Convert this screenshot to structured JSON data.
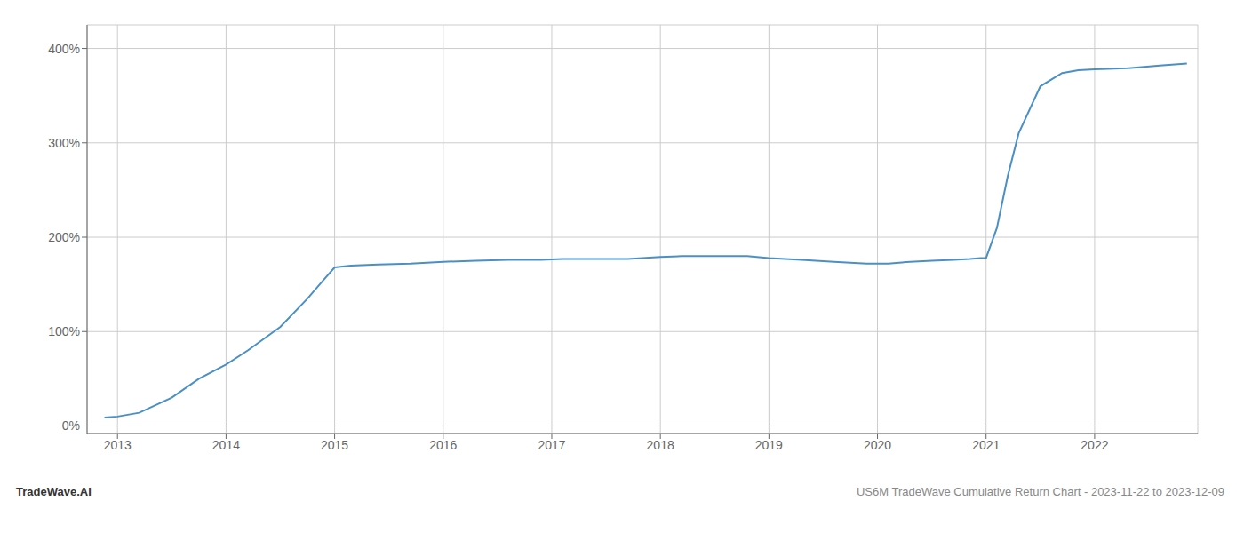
{
  "chart_data": {
    "type": "line",
    "x": [
      2012.88,
      2013.0,
      2013.2,
      2013.5,
      2013.75,
      2014.0,
      2014.2,
      2014.5,
      2014.75,
      2014.9,
      2015.0,
      2015.15,
      2015.4,
      2015.7,
      2016.0,
      2016.3,
      2016.6,
      2016.9,
      2017.1,
      2017.4,
      2017.7,
      2018.0,
      2018.2,
      2018.5,
      2018.8,
      2019.0,
      2019.3,
      2019.6,
      2019.9,
      2020.0,
      2020.1,
      2020.2,
      2020.3,
      2020.5,
      2020.7,
      2020.85,
      2020.95,
      2021.0,
      2021.1,
      2021.2,
      2021.3,
      2021.5,
      2021.7,
      2021.85,
      2022.0,
      2022.3,
      2022.6,
      2022.85
    ],
    "values": [
      0.09,
      0.1,
      0.14,
      0.3,
      0.5,
      0.65,
      0.8,
      1.05,
      1.35,
      1.55,
      1.68,
      1.7,
      1.71,
      1.72,
      1.74,
      1.75,
      1.76,
      1.76,
      1.77,
      1.77,
      1.77,
      1.79,
      1.8,
      1.8,
      1.8,
      1.78,
      1.76,
      1.74,
      1.72,
      1.72,
      1.72,
      1.73,
      1.74,
      1.75,
      1.76,
      1.77,
      1.78,
      1.78,
      2.1,
      2.65,
      3.1,
      3.6,
      3.74,
      3.77,
      3.78,
      3.79,
      3.82,
      3.84
    ],
    "color": "#4a90c4",
    "xlim": [
      2012.72,
      2022.95
    ],
    "xticks": [
      2013,
      2014,
      2015,
      2016,
      2017,
      2018,
      2019,
      2020,
      2021,
      2022
    ],
    "ylim": [
      -0.08,
      4.25
    ],
    "yticks": [
      {
        "value": 0.0,
        "label": "0%"
      },
      {
        "value": 1.0,
        "label": "100%"
      },
      {
        "value": 2.0,
        "label": "200%"
      },
      {
        "value": 3.0,
        "label": "300%"
      },
      {
        "value": 4.0,
        "label": "400%"
      }
    ],
    "grid": true,
    "annotations": [
      "TradeWave.AI",
      "US6M TradeWave Cumulative Return Chart - 2023-11-22 to 2023-12-09"
    ]
  }
}
